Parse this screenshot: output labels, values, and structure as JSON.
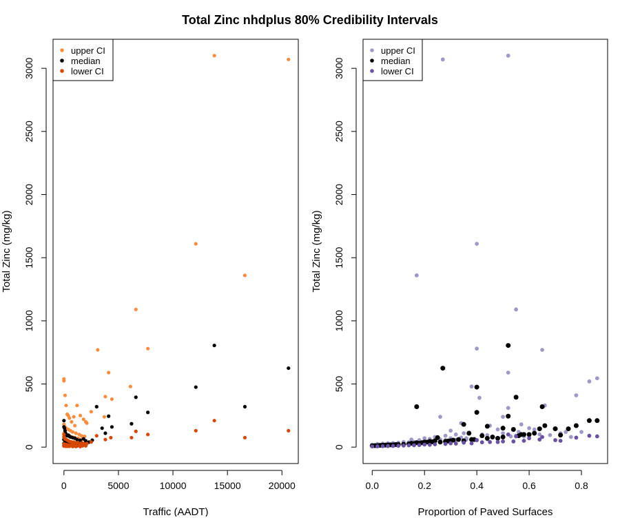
{
  "chart_title": "Total Zinc nhdplus 80% Credibility Intervals",
  "chart_data": [
    {
      "type": "scatter",
      "xlabel": "Traffic (AADT)",
      "ylabel": "Total Zinc (mg/kg)",
      "xlim": [
        -1000,
        21500
      ],
      "ylim": [
        -130,
        3230
      ],
      "x_ticks": [
        0,
        5000,
        10000,
        15000,
        20000
      ],
      "y_ticks": [
        0,
        500,
        1000,
        1500,
        2000,
        2500,
        3000
      ],
      "legend_position": "top-left",
      "grid": false,
      "colors": {
        "upper": "#fd8d3c",
        "median": "#000000",
        "lower": "#d94801"
      },
      "series": [
        {
          "name": "upper CI",
          "x": [
            0,
            0,
            100,
            200,
            300,
            400,
            500,
            700,
            900,
            1000,
            1200,
            1500,
            1800,
            2000,
            2100,
            2500,
            3100,
            3700,
            3800,
            4100,
            4400,
            6100,
            6600,
            7700,
            12100,
            13800,
            16600,
            20600,
            0,
            100,
            200,
            400,
            600,
            800,
            1100,
            1400,
            1600,
            1900,
            0,
            150,
            300,
            500,
            750,
            1000,
            1300,
            1700,
            0,
            50,
            200,
            350,
            600,
            900,
            1250,
            1600,
            2200
          ],
          "y": [
            540,
            525,
            410,
            330,
            260,
            250,
            230,
            200,
            240,
            170,
            330,
            250,
            220,
            200,
            190,
            280,
            770,
            240,
            400,
            590,
            380,
            480,
            1090,
            780,
            1610,
            3100,
            1360,
            3070,
            180,
            160,
            150,
            140,
            130,
            120,
            110,
            100,
            90,
            85,
            110,
            100,
            95,
            90,
            80,
            75,
            70,
            65,
            60,
            55,
            50,
            48,
            45,
            42,
            40,
            38,
            35
          ]
        },
        {
          "name": "median",
          "x": [
            0,
            0,
            50,
            100,
            150,
            200,
            300,
            400,
            500,
            600,
            800,
            1000,
            1200,
            1500,
            1800,
            2000,
            2300,
            2600,
            3000,
            3500,
            3800,
            4100,
            4400,
            6200,
            6600,
            7700,
            12100,
            13800,
            16600,
            20600,
            0,
            100,
            200,
            300,
            500,
            700,
            900,
            1100,
            1400,
            1700,
            0,
            100,
            250,
            400,
            600,
            800,
            1000,
            1300,
            1600,
            2000,
            0,
            150,
            350,
            550,
            750,
            950,
            1200
          ],
          "y": [
            210,
            160,
            150,
            130,
            110,
            100,
            90,
            95,
            85,
            80,
            75,
            70,
            60,
            55,
            65,
            50,
            40,
            55,
            320,
            150,
            110,
            245,
            160,
            185,
            395,
            275,
            475,
            805,
            320,
            625,
            60,
            55,
            50,
            45,
            40,
            38,
            35,
            32,
            30,
            28,
            30,
            28,
            26,
            25,
            22,
            22,
            20,
            20,
            18,
            18,
            12,
            12,
            12,
            12,
            10,
            10,
            10
          ]
        },
        {
          "name": "lower CI",
          "x": [
            0,
            0,
            100,
            200,
            300,
            400,
            500,
            700,
            900,
            1200,
            1500,
            1800,
            2100,
            2500,
            3000,
            3800,
            4300,
            6200,
            6600,
            7700,
            12100,
            13800,
            16600,
            20600,
            0,
            100,
            200,
            300,
            500,
            700,
            900,
            1100,
            1400,
            1700,
            2000,
            0,
            150,
            300,
            500,
            800,
            1100,
            1500
          ],
          "y": [
            100,
            80,
            65,
            60,
            55,
            50,
            45,
            40,
            35,
            35,
            30,
            30,
            28,
            40,
            90,
            60,
            75,
            75,
            125,
            100,
            130,
            210,
            75,
            130,
            25,
            22,
            20,
            18,
            16,
            15,
            14,
            12,
            12,
            10,
            10,
            8,
            7,
            6,
            6,
            5,
            5,
            4
          ]
        }
      ]
    },
    {
      "type": "scatter",
      "xlabel": "Proportion of Paved Surfaces",
      "ylabel": "Total Zinc (mg/kg)",
      "xlim": [
        -0.035,
        0.9
      ],
      "ylim": [
        -130,
        3230
      ],
      "x_ticks": [
        0.0,
        0.2,
        0.4,
        0.6,
        0.8
      ],
      "y_ticks": [
        0,
        500,
        1000,
        1500,
        2000,
        2500,
        3000
      ],
      "legend_position": "top-left",
      "grid": false,
      "colors": {
        "upper": "#9e9ac8",
        "median": "#000000",
        "lower": "#6a51a3"
      },
      "series": [
        {
          "name": "upper CI",
          "x": [
            0.27,
            0.52,
            0.4,
            0.17,
            0.55,
            0.4,
            0.52,
            0.65,
            0.26,
            0.38,
            0.41,
            0.52,
            0.66,
            0.78,
            0.83,
            0.86,
            0.34,
            0.45,
            0.5,
            0.57,
            0.6,
            0.62,
            0.7,
            0.74,
            0.3,
            0.35,
            0.42,
            0.48,
            0.55,
            0.58,
            0.64,
            0.2,
            0.24,
            0.28,
            0.32,
            0.36,
            0.44,
            0.46,
            0.5,
            0.53,
            0.56,
            0.6,
            0.68,
            0.72,
            0.76,
            0.8,
            0.15,
            0.18,
            0.22,
            0.26,
            0.3,
            0.34,
            0.38,
            0.0,
            0.02,
            0.04,
            0.06,
            0.08,
            0.1,
            0.12,
            0.14,
            0.16,
            0.18,
            0.2,
            0.22,
            0.24,
            0.28,
            0.32,
            0.36,
            0.4,
            0.44,
            0.48
          ],
          "y": [
            3070,
            3100,
            1610,
            1360,
            1090,
            780,
            590,
            770,
            240,
            480,
            390,
            310,
            330,
            410,
            520,
            545,
            190,
            170,
            240,
            180,
            150,
            140,
            150,
            120,
            130,
            110,
            100,
            140,
            90,
            85,
            100,
            70,
            80,
            90,
            100,
            70,
            95,
            75,
            110,
            85,
            120,
            90,
            95,
            110,
            80,
            120,
            60,
            55,
            65,
            60,
            70,
            75,
            60,
            20,
            25,
            28,
            30,
            32,
            35,
            40,
            38,
            42,
            45,
            50,
            48,
            52,
            55,
            58,
            60,
            55,
            62,
            65
          ]
        },
        {
          "name": "median",
          "x": [
            0.52,
            0.27,
            0.4,
            0.55,
            0.17,
            0.65,
            0.4,
            0.52,
            0.66,
            0.78,
            0.83,
            0.86,
            0.44,
            0.5,
            0.54,
            0.57,
            0.6,
            0.62,
            0.64,
            0.7,
            0.72,
            0.75,
            0.35,
            0.37,
            0.42,
            0.46,
            0.48,
            0.58,
            0.25,
            0.3,
            0.33,
            0.38,
            0.44,
            0.5,
            0.56,
            0.2,
            0.22,
            0.24,
            0.28,
            0.31,
            0.35,
            0.39,
            0.15,
            0.17,
            0.19,
            0.21,
            0.23,
            0.26,
            0.29,
            0.1,
            0.12,
            0.14,
            0.16,
            0.18,
            0.0,
            0.01,
            0.02,
            0.03,
            0.04,
            0.05,
            0.06,
            0.07,
            0.08,
            0.09
          ],
          "y": [
            805,
            625,
            475,
            395,
            320,
            320,
            275,
            245,
            170,
            170,
            210,
            210,
            165,
            150,
            140,
            100,
            100,
            110,
            145,
            145,
            95,
            145,
            180,
            110,
            90,
            80,
            70,
            100,
            75,
            50,
            60,
            60,
            70,
            80,
            90,
            40,
            45,
            50,
            45,
            55,
            50,
            60,
            30,
            35,
            35,
            40,
            42,
            40,
            48,
            20,
            22,
            25,
            28,
            30,
            10,
            12,
            12,
            14,
            15,
            16,
            17,
            18,
            18,
            20
          ]
        },
        {
          "name": "lower CI",
          "x": [
            0.52,
            0.55,
            0.65,
            0.78,
            0.83,
            0.86,
            0.6,
            0.64,
            0.7,
            0.72,
            0.4,
            0.45,
            0.5,
            0.58,
            0.3,
            0.35,
            0.42,
            0.48,
            0.54,
            0.2,
            0.24,
            0.28,
            0.32,
            0.38,
            0.1,
            0.12,
            0.14,
            0.16,
            0.18,
            0.22,
            0.0,
            0.02,
            0.04,
            0.06,
            0.08
          ],
          "y": [
            100,
            85,
            80,
            75,
            90,
            85,
            70,
            60,
            55,
            50,
            55,
            40,
            45,
            50,
            30,
            35,
            38,
            40,
            45,
            20,
            22,
            25,
            28,
            30,
            10,
            12,
            14,
            15,
            16,
            18,
            5,
            6,
            7,
            8,
            9
          ]
        }
      ]
    }
  ]
}
